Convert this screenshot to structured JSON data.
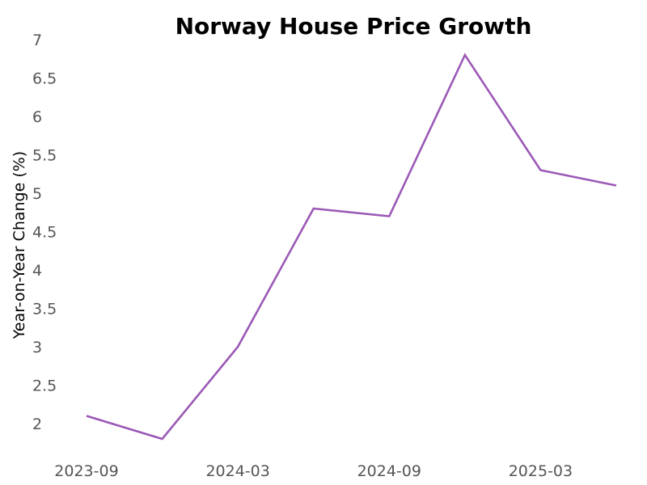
{
  "chart_data": {
    "type": "line",
    "title": "Norway House Price Growth",
    "xlabel": "",
    "ylabel": "Year-on-Year Change (%)",
    "x": [
      "2023-09",
      "2023-12",
      "2024-03",
      "2024-06",
      "2024-09",
      "2024-12",
      "2025-03",
      "2025-06"
    ],
    "x_ticks": [
      "2023-09",
      "2024-03",
      "2024-09",
      "2025-03"
    ],
    "y_ticks": [
      "2",
      "2.5",
      "3",
      "3.5",
      "4",
      "4.5",
      "5",
      "5.5",
      "6",
      "6.5",
      "7"
    ],
    "ylim": [
      1.75,
      7
    ],
    "grid": false,
    "series": [
      {
        "color": "#9b59b6",
        "values": [
          2.1,
          1.8,
          3.0,
          4.8,
          4.7,
          6.8,
          5.3,
          5.1
        ]
      }
    ]
  }
}
